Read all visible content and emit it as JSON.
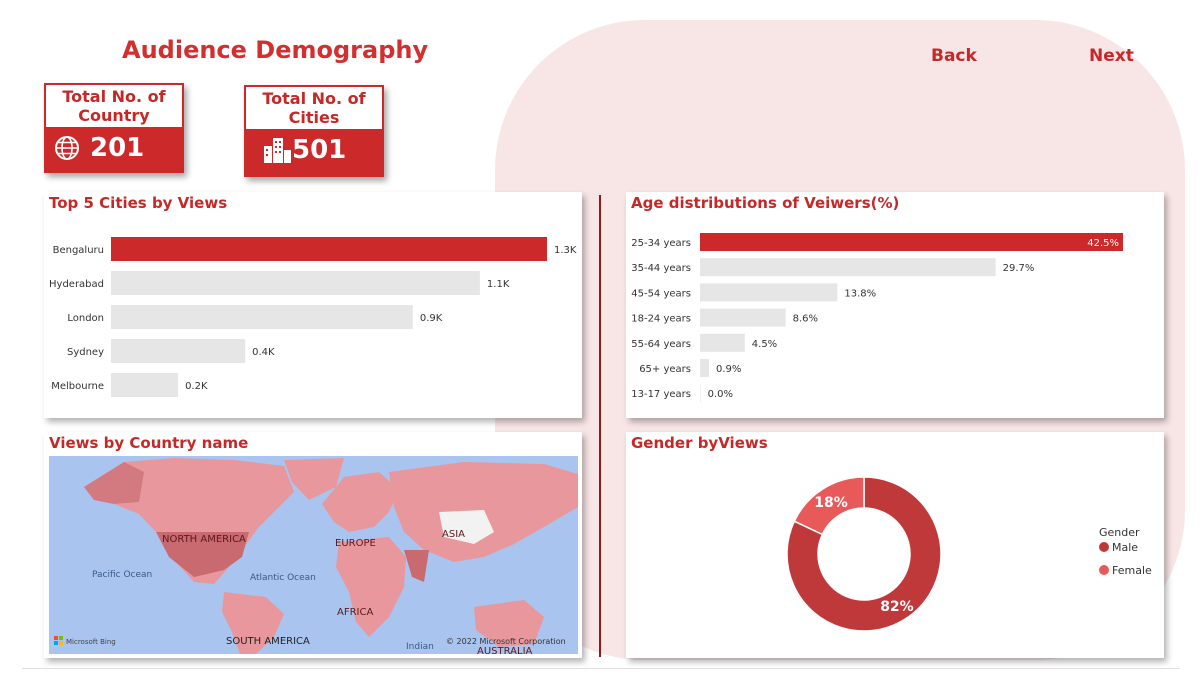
{
  "header": {
    "title": "Audience Demography",
    "back_label": "Back",
    "next_label": "Next"
  },
  "kpis": [
    {
      "label": "Total No. of Country",
      "value": "201",
      "icon": "globe-icon"
    },
    {
      "label": "Total No. of Cities",
      "value": "501",
      "icon": "buildings-icon"
    }
  ],
  "colors": {
    "accent": "#cc2a2a",
    "bar_grey": "#e6e6e6",
    "male": "#c0393a",
    "female": "#e85a5a"
  },
  "cities_chart": {
    "title": "Top 5 Cities by Views",
    "chart_data": {
      "type": "bar",
      "orientation": "horizontal",
      "categories": [
        "Bengaluru",
        "Hyderabad",
        "London",
        "Sydney",
        "Melbourne"
      ],
      "values": [
        1.3,
        1.1,
        0.9,
        0.4,
        0.2
      ],
      "labels": [
        "1.3K",
        "1.1K",
        "0.9K",
        "0.4K",
        "0.2K"
      ],
      "highlight_index": 0,
      "xlim": [
        0,
        1.3
      ]
    }
  },
  "age_chart": {
    "title": "Age distributions of Veiwers(%)",
    "chart_data": {
      "type": "bar",
      "orientation": "horizontal",
      "categories": [
        "25-34 years",
        "35-44 years",
        "45-54 years",
        "18-24 years",
        "55-64 years",
        "65+ years",
        "13-17 years"
      ],
      "values": [
        42.5,
        29.7,
        13.8,
        8.6,
        4.5,
        0.9,
        0.0
      ],
      "labels": [
        "42.5%",
        "29.7%",
        "13.8%",
        "8.6%",
        "4.5%",
        "0.9%",
        "0.0%"
      ],
      "highlight_index": 0,
      "xlim": [
        0,
        42.5
      ]
    }
  },
  "map": {
    "title": "Views by Country name",
    "labels": {
      "north_america": "NORTH AMERICA",
      "europe": "EUROPE",
      "asia": "ASIA",
      "africa": "AFRICA",
      "south_america": "SOUTH AMERICA",
      "australia": "AUSTRALIA",
      "pacific": "Pacific Ocean",
      "atlantic": "Atlantic Ocean",
      "indian": "Indian"
    },
    "attribution": "Microsoft Bing",
    "copyright": "© 2022 Microsoft Corporation"
  },
  "gender_chart": {
    "title": "Gender byViews",
    "legend_title": "Gender",
    "chart_data": {
      "type": "pie",
      "donut": true,
      "categories": [
        "Male",
        "Female"
      ],
      "values": [
        82,
        18
      ],
      "labels": [
        "82%",
        "18%"
      ]
    }
  }
}
